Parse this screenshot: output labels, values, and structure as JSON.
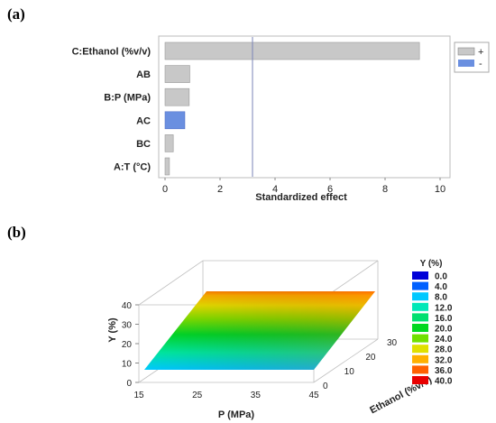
{
  "panels": {
    "a_label": "(a)",
    "b_label": "(b)"
  },
  "chart_data": [
    {
      "type": "bar",
      "orientation": "horizontal",
      "title": "",
      "xlabel": "Standardized effect",
      "ylabel": "",
      "categories": [
        "C:Ethanol (%v/v)",
        "AB",
        "B:P (MPa)",
        "AC",
        "BC",
        "A:T (°C)"
      ],
      "values": [
        9.25,
        0.9,
        0.88,
        0.72,
        0.3,
        0.16
      ],
      "signs": [
        "+",
        "+",
        "+",
        "-",
        "+",
        "+"
      ],
      "xlim": [
        0,
        10
      ],
      "xticks": [
        0,
        2,
        4,
        6,
        8,
        10
      ],
      "reference_line": 3.18,
      "legend": [
        {
          "label": "+",
          "color": "#c8c8c8"
        },
        {
          "label": "-",
          "color": "#6a8fe0"
        }
      ],
      "legend_position": "right"
    },
    {
      "type": "surface",
      "title": "",
      "xlabel": "P (MPa)",
      "ylabel": "Ethanol (%v/v)",
      "zlabel": "Y (%)",
      "xlim": [
        15,
        45
      ],
      "ylim": [
        0,
        30
      ],
      "zlim": [
        0,
        40
      ],
      "xticks": [
        15,
        25,
        35,
        45
      ],
      "yticks": [
        0,
        10,
        20,
        30
      ],
      "zticks": [
        0,
        10,
        20,
        30,
        40
      ],
      "surface_corners": [
        {
          "p": 15,
          "ethanol": 0,
          "y": 8
        },
        {
          "p": 45,
          "ethanol": 0,
          "y": 8
        },
        {
          "p": 15,
          "ethanol": 30,
          "y": 37
        },
        {
          "p": 45,
          "ethanol": 30,
          "y": 40
        }
      ],
      "colorbar": {
        "title": "Y (%)",
        "levels": [
          "0.0",
          "4.0",
          "8.0",
          "12.0",
          "16.0",
          "20.0",
          "24.0",
          "28.0",
          "32.0",
          "36.0",
          "40.0"
        ],
        "colors": [
          "#0000d8",
          "#0060ff",
          "#00c8ff",
          "#00e8b8",
          "#00e070",
          "#00d820",
          "#70e000",
          "#e0e000",
          "#ffb000",
          "#ff6000",
          "#e80000"
        ]
      }
    }
  ]
}
